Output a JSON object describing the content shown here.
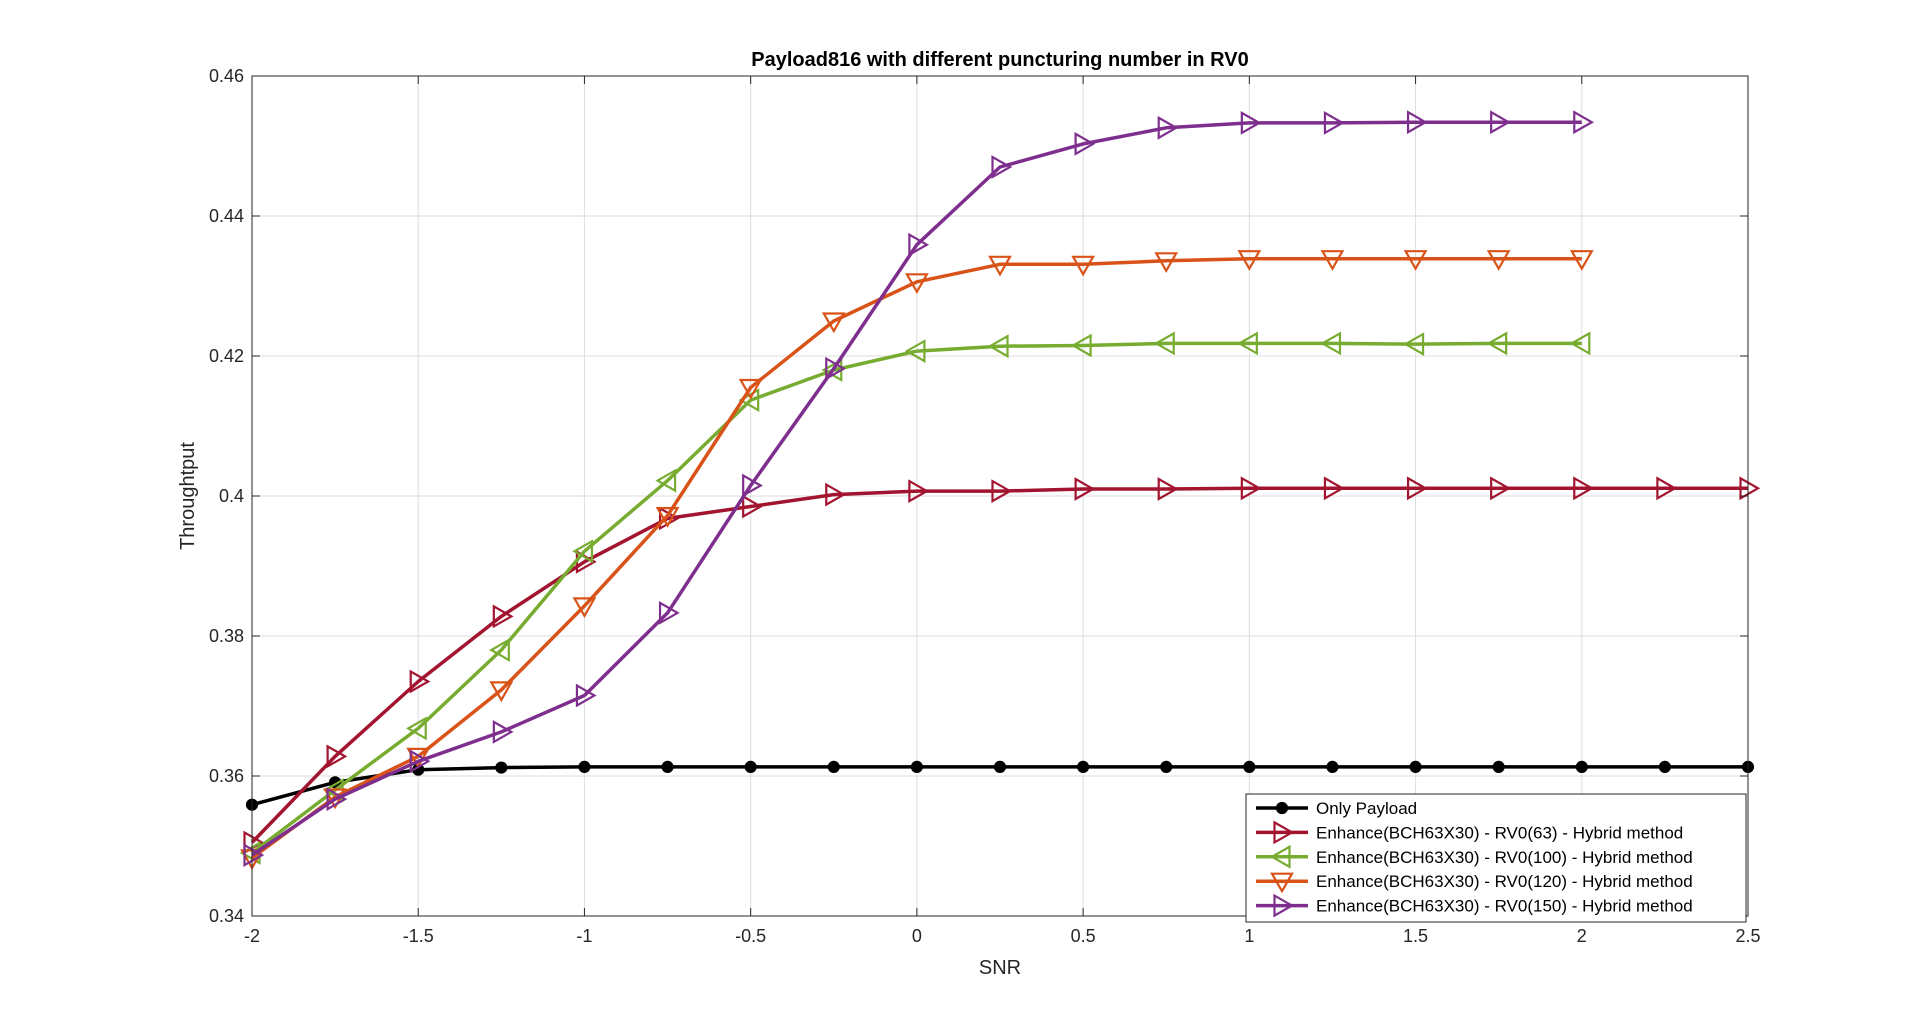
{
  "chart_data": {
    "type": "line",
    "title": "Payload816 with different puncturing number in RV0",
    "xlabel": "SNR",
    "ylabel": "Throughtput",
    "xlim": [
      -2,
      2.5
    ],
    "ylim": [
      0.34,
      0.46
    ],
    "xticks": [
      -2,
      -1.5,
      -1,
      -0.5,
      0,
      0.5,
      1,
      1.5,
      2,
      2.5
    ],
    "xtick_labels": [
      "-2",
      "-1.5",
      "-1",
      "-0.5",
      "0",
      "0.5",
      "1",
      "1.5",
      "2",
      "2.5"
    ],
    "yticks": [
      0.34,
      0.36,
      0.38,
      0.4,
      0.42,
      0.44,
      0.46
    ],
    "ytick_labels": [
      "0.34",
      "0.36",
      "0.38",
      "0.4",
      "0.42",
      "0.44",
      "0.46"
    ],
    "grid": true,
    "legend_position": "bottom-right",
    "series": [
      {
        "name": "Only Payload",
        "color": "#000000",
        "marker": "circle",
        "x": [
          -2,
          -1.75,
          -1.5,
          -1.25,
          -1,
          -0.75,
          -0.5,
          -0.25,
          0,
          0.25,
          0.5,
          0.75,
          1,
          1.25,
          1.5,
          1.75,
          2,
          2.25,
          2.5
        ],
        "y": [
          0.3559,
          0.3591,
          0.3609,
          0.3612,
          0.3613,
          0.3613,
          0.3613,
          0.3613,
          0.3613,
          0.3613,
          0.3613,
          0.3613,
          0.3613,
          0.3613,
          0.3613,
          0.3613,
          0.3613,
          0.3613,
          0.3613
        ]
      },
      {
        "name": "Enhance(BCH63X30) - RV0(63) - Hybrid method",
        "color": "#A2142F",
        "marker": "triangle-right",
        "x": [
          -2,
          -1.75,
          -1.5,
          -1.25,
          -1,
          -0.75,
          -0.5,
          -0.25,
          0,
          0.25,
          0.5,
          0.75,
          1,
          1.25,
          1.5,
          1.75,
          2,
          2.25,
          2.5
        ],
        "y": [
          0.3505,
          0.3628,
          0.3735,
          0.3828,
          0.3906,
          0.3968,
          0.3985,
          0.4002,
          0.4007,
          0.4007,
          0.401,
          0.401,
          0.4011,
          0.4011,
          0.4011,
          0.4011,
          0.4011,
          0.4011,
          0.4011
        ]
      },
      {
        "name": "Enhance(BCH63X30) - RV0(100) - Hybrid method",
        "color": "#77AC30",
        "marker": "triangle-left",
        "x": [
          -2,
          -1.75,
          -1.5,
          -1.25,
          -1,
          -0.75,
          -0.5,
          -0.25,
          0,
          0.25,
          0.5,
          0.75,
          1,
          1.25,
          1.5,
          1.75,
          2
        ],
        "y": [
          0.349,
          0.358,
          0.3668,
          0.378,
          0.3921,
          0.4022,
          0.4137,
          0.418,
          0.4207,
          0.4214,
          0.4215,
          0.4218,
          0.4218,
          0.4218,
          0.4217,
          0.4218,
          0.4218
        ]
      },
      {
        "name": "Enhance(BCH63X30) - RV0(120) - Hybrid method",
        "color": "#D95319",
        "marker": "triangle-down",
        "x": [
          -2,
          -1.75,
          -1.5,
          -1.25,
          -1,
          -0.75,
          -0.5,
          -0.25,
          0,
          0.25,
          0.5,
          0.75,
          1,
          1.25,
          1.5,
          1.75,
          2
        ],
        "y": [
          0.3483,
          0.357,
          0.3628,
          0.3723,
          0.3843,
          0.3972,
          0.4155,
          0.425,
          0.4306,
          0.4331,
          0.4331,
          0.4336,
          0.4339,
          0.4339,
          0.4339,
          0.4339,
          0.4339
        ]
      },
      {
        "name": "Enhance(BCH63X30) - RV0(150) - Hybrid method",
        "color": "#7E2F8E",
        "marker": "triangle-right",
        "x": [
          -2,
          -1.75,
          -1.5,
          -1.25,
          -1,
          -0.75,
          -0.5,
          -0.25,
          0,
          0.25,
          0.5,
          0.75,
          1,
          1.25,
          1.5,
          1.75,
          2
        ],
        "y": [
          0.3487,
          0.3567,
          0.3621,
          0.3663,
          0.3715,
          0.3833,
          0.4015,
          0.4182,
          0.4359,
          0.447,
          0.4503,
          0.4526,
          0.4533,
          0.4533,
          0.4534,
          0.4534,
          0.4534
        ]
      }
    ]
  }
}
